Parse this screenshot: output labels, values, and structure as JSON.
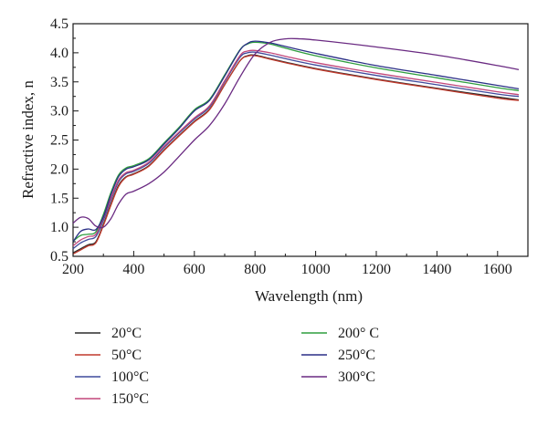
{
  "chart_data": {
    "type": "line",
    "xlabel": "Wavelength (nm)",
    "ylabel": "Refractive index, n",
    "xlim": [
      200,
      1700
    ],
    "ylim": [
      0.5,
      4.5
    ],
    "x_ticks": [
      200,
      400,
      600,
      800,
      1000,
      1200,
      1400,
      1600
    ],
    "y_ticks": [
      0.5,
      1.0,
      1.5,
      2.0,
      2.5,
      3.0,
      3.5,
      4.0,
      4.5
    ],
    "x_tick_labels": [
      "200",
      "400",
      "600",
      "800",
      "1000",
      "1200",
      "1400",
      "1600"
    ],
    "y_tick_labels": [
      "0.5",
      "1.0",
      "1.5",
      "2.0",
      "2.5",
      "3.0",
      "3.5",
      "4.0",
      "4.5"
    ],
    "grid": false,
    "legend_position": "bottom",
    "series": [
      {
        "name": "20°C",
        "color": "#2b2b2b",
        "points": [
          [
            200,
            0.56
          ],
          [
            225,
            0.63
          ],
          [
            250,
            0.7
          ],
          [
            275,
            0.75
          ],
          [
            300,
            1.05
          ],
          [
            325,
            1.4
          ],
          [
            350,
            1.72
          ],
          [
            375,
            1.87
          ],
          [
            400,
            1.92
          ],
          [
            450,
            2.06
          ],
          [
            500,
            2.33
          ],
          [
            550,
            2.58
          ],
          [
            600,
            2.82
          ],
          [
            650,
            3.03
          ],
          [
            700,
            3.45
          ],
          [
            750,
            3.86
          ],
          [
            775,
            3.95
          ],
          [
            800,
            3.96
          ],
          [
            850,
            3.9
          ],
          [
            900,
            3.84
          ],
          [
            1000,
            3.73
          ],
          [
            1200,
            3.55
          ],
          [
            1400,
            3.39
          ],
          [
            1600,
            3.24
          ],
          [
            1670,
            3.19
          ]
        ]
      },
      {
        "name": "50°C",
        "color": "#c0392b",
        "points": [
          [
            200,
            0.54
          ],
          [
            225,
            0.61
          ],
          [
            250,
            0.68
          ],
          [
            275,
            0.73
          ],
          [
            300,
            1.03
          ],
          [
            325,
            1.38
          ],
          [
            350,
            1.7
          ],
          [
            375,
            1.86
          ],
          [
            400,
            1.91
          ],
          [
            450,
            2.05
          ],
          [
            500,
            2.32
          ],
          [
            550,
            2.57
          ],
          [
            600,
            2.81
          ],
          [
            650,
            3.02
          ],
          [
            700,
            3.45
          ],
          [
            750,
            3.86
          ],
          [
            775,
            3.94
          ],
          [
            800,
            3.95
          ],
          [
            850,
            3.89
          ],
          [
            900,
            3.83
          ],
          [
            1000,
            3.72
          ],
          [
            1200,
            3.54
          ],
          [
            1400,
            3.38
          ],
          [
            1600,
            3.22
          ],
          [
            1670,
            3.18
          ]
        ]
      },
      {
        "name": "100°C",
        "color": "#3f4a9c",
        "points": [
          [
            200,
            0.63
          ],
          [
            225,
            0.73
          ],
          [
            250,
            0.79
          ],
          [
            275,
            0.84
          ],
          [
            300,
            1.12
          ],
          [
            325,
            1.47
          ],
          [
            350,
            1.78
          ],
          [
            375,
            1.92
          ],
          [
            400,
            1.96
          ],
          [
            450,
            2.1
          ],
          [
            500,
            2.37
          ],
          [
            550,
            2.62
          ],
          [
            600,
            2.86
          ],
          [
            650,
            3.07
          ],
          [
            700,
            3.5
          ],
          [
            750,
            3.92
          ],
          [
            775,
            4.0
          ],
          [
            800,
            4.01
          ],
          [
            850,
            3.96
          ],
          [
            900,
            3.9
          ],
          [
            1000,
            3.79
          ],
          [
            1200,
            3.61
          ],
          [
            1400,
            3.45
          ],
          [
            1600,
            3.29
          ],
          [
            1670,
            3.25
          ]
        ]
      },
      {
        "name": "150°C",
        "color": "#c2467a",
        "points": [
          [
            200,
            0.68
          ],
          [
            225,
            0.78
          ],
          [
            250,
            0.84
          ],
          [
            275,
            0.88
          ],
          [
            300,
            1.16
          ],
          [
            325,
            1.5
          ],
          [
            350,
            1.81
          ],
          [
            375,
            1.94
          ],
          [
            400,
            1.98
          ],
          [
            450,
            2.12
          ],
          [
            500,
            2.39
          ],
          [
            550,
            2.64
          ],
          [
            600,
            2.88
          ],
          [
            650,
            3.09
          ],
          [
            700,
            3.52
          ],
          [
            750,
            3.95
          ],
          [
            775,
            4.03
          ],
          [
            800,
            4.04
          ],
          [
            850,
            4.0
          ],
          [
            900,
            3.94
          ],
          [
            1000,
            3.83
          ],
          [
            1200,
            3.65
          ],
          [
            1400,
            3.49
          ],
          [
            1600,
            3.33
          ],
          [
            1670,
            3.28
          ]
        ]
      },
      {
        "name": "200° C",
        "color": "#2e9e3e",
        "points": [
          [
            200,
            0.76
          ],
          [
            225,
            0.86
          ],
          [
            250,
            0.88
          ],
          [
            275,
            0.92
          ],
          [
            300,
            1.22
          ],
          [
            325,
            1.6
          ],
          [
            350,
            1.9
          ],
          [
            375,
            2.02
          ],
          [
            400,
            2.06
          ],
          [
            450,
            2.18
          ],
          [
            500,
            2.45
          ],
          [
            550,
            2.72
          ],
          [
            600,
            3.02
          ],
          [
            650,
            3.2
          ],
          [
            700,
            3.62
          ],
          [
            750,
            4.05
          ],
          [
            775,
            4.15
          ],
          [
            800,
            4.18
          ],
          [
            850,
            4.15
          ],
          [
            900,
            4.08
          ],
          [
            1000,
            3.95
          ],
          [
            1200,
            3.74
          ],
          [
            1400,
            3.57
          ],
          [
            1600,
            3.4
          ],
          [
            1670,
            3.35
          ]
        ]
      },
      {
        "name": "250°C",
        "color": "#2a2f86",
        "points": [
          [
            200,
            0.75
          ],
          [
            225,
            0.93
          ],
          [
            250,
            0.97
          ],
          [
            275,
            0.96
          ],
          [
            300,
            1.18
          ],
          [
            325,
            1.56
          ],
          [
            350,
            1.87
          ],
          [
            375,
            2.0
          ],
          [
            400,
            2.04
          ],
          [
            450,
            2.16
          ],
          [
            500,
            2.43
          ],
          [
            550,
            2.7
          ],
          [
            600,
            3.0
          ],
          [
            650,
            3.18
          ],
          [
            700,
            3.6
          ],
          [
            750,
            4.04
          ],
          [
            775,
            4.16
          ],
          [
            800,
            4.2
          ],
          [
            850,
            4.17
          ],
          [
            900,
            4.11
          ],
          [
            1000,
            3.99
          ],
          [
            1200,
            3.78
          ],
          [
            1400,
            3.61
          ],
          [
            1600,
            3.44
          ],
          [
            1670,
            3.38
          ]
        ]
      },
      {
        "name": "300°C",
        "color": "#6a2a82",
        "points": [
          [
            200,
            1.07
          ],
          [
            225,
            1.17
          ],
          [
            250,
            1.15
          ],
          [
            275,
            1.02
          ],
          [
            300,
            1.0
          ],
          [
            325,
            1.15
          ],
          [
            350,
            1.4
          ],
          [
            375,
            1.57
          ],
          [
            400,
            1.62
          ],
          [
            450,
            1.75
          ],
          [
            500,
            1.95
          ],
          [
            550,
            2.22
          ],
          [
            600,
            2.5
          ],
          [
            650,
            2.75
          ],
          [
            700,
            3.12
          ],
          [
            750,
            3.58
          ],
          [
            800,
            3.98
          ],
          [
            850,
            4.18
          ],
          [
            900,
            4.24
          ],
          [
            950,
            4.24
          ],
          [
            1000,
            4.22
          ],
          [
            1200,
            4.1
          ],
          [
            1400,
            3.96
          ],
          [
            1600,
            3.78
          ],
          [
            1670,
            3.71
          ]
        ]
      }
    ]
  }
}
